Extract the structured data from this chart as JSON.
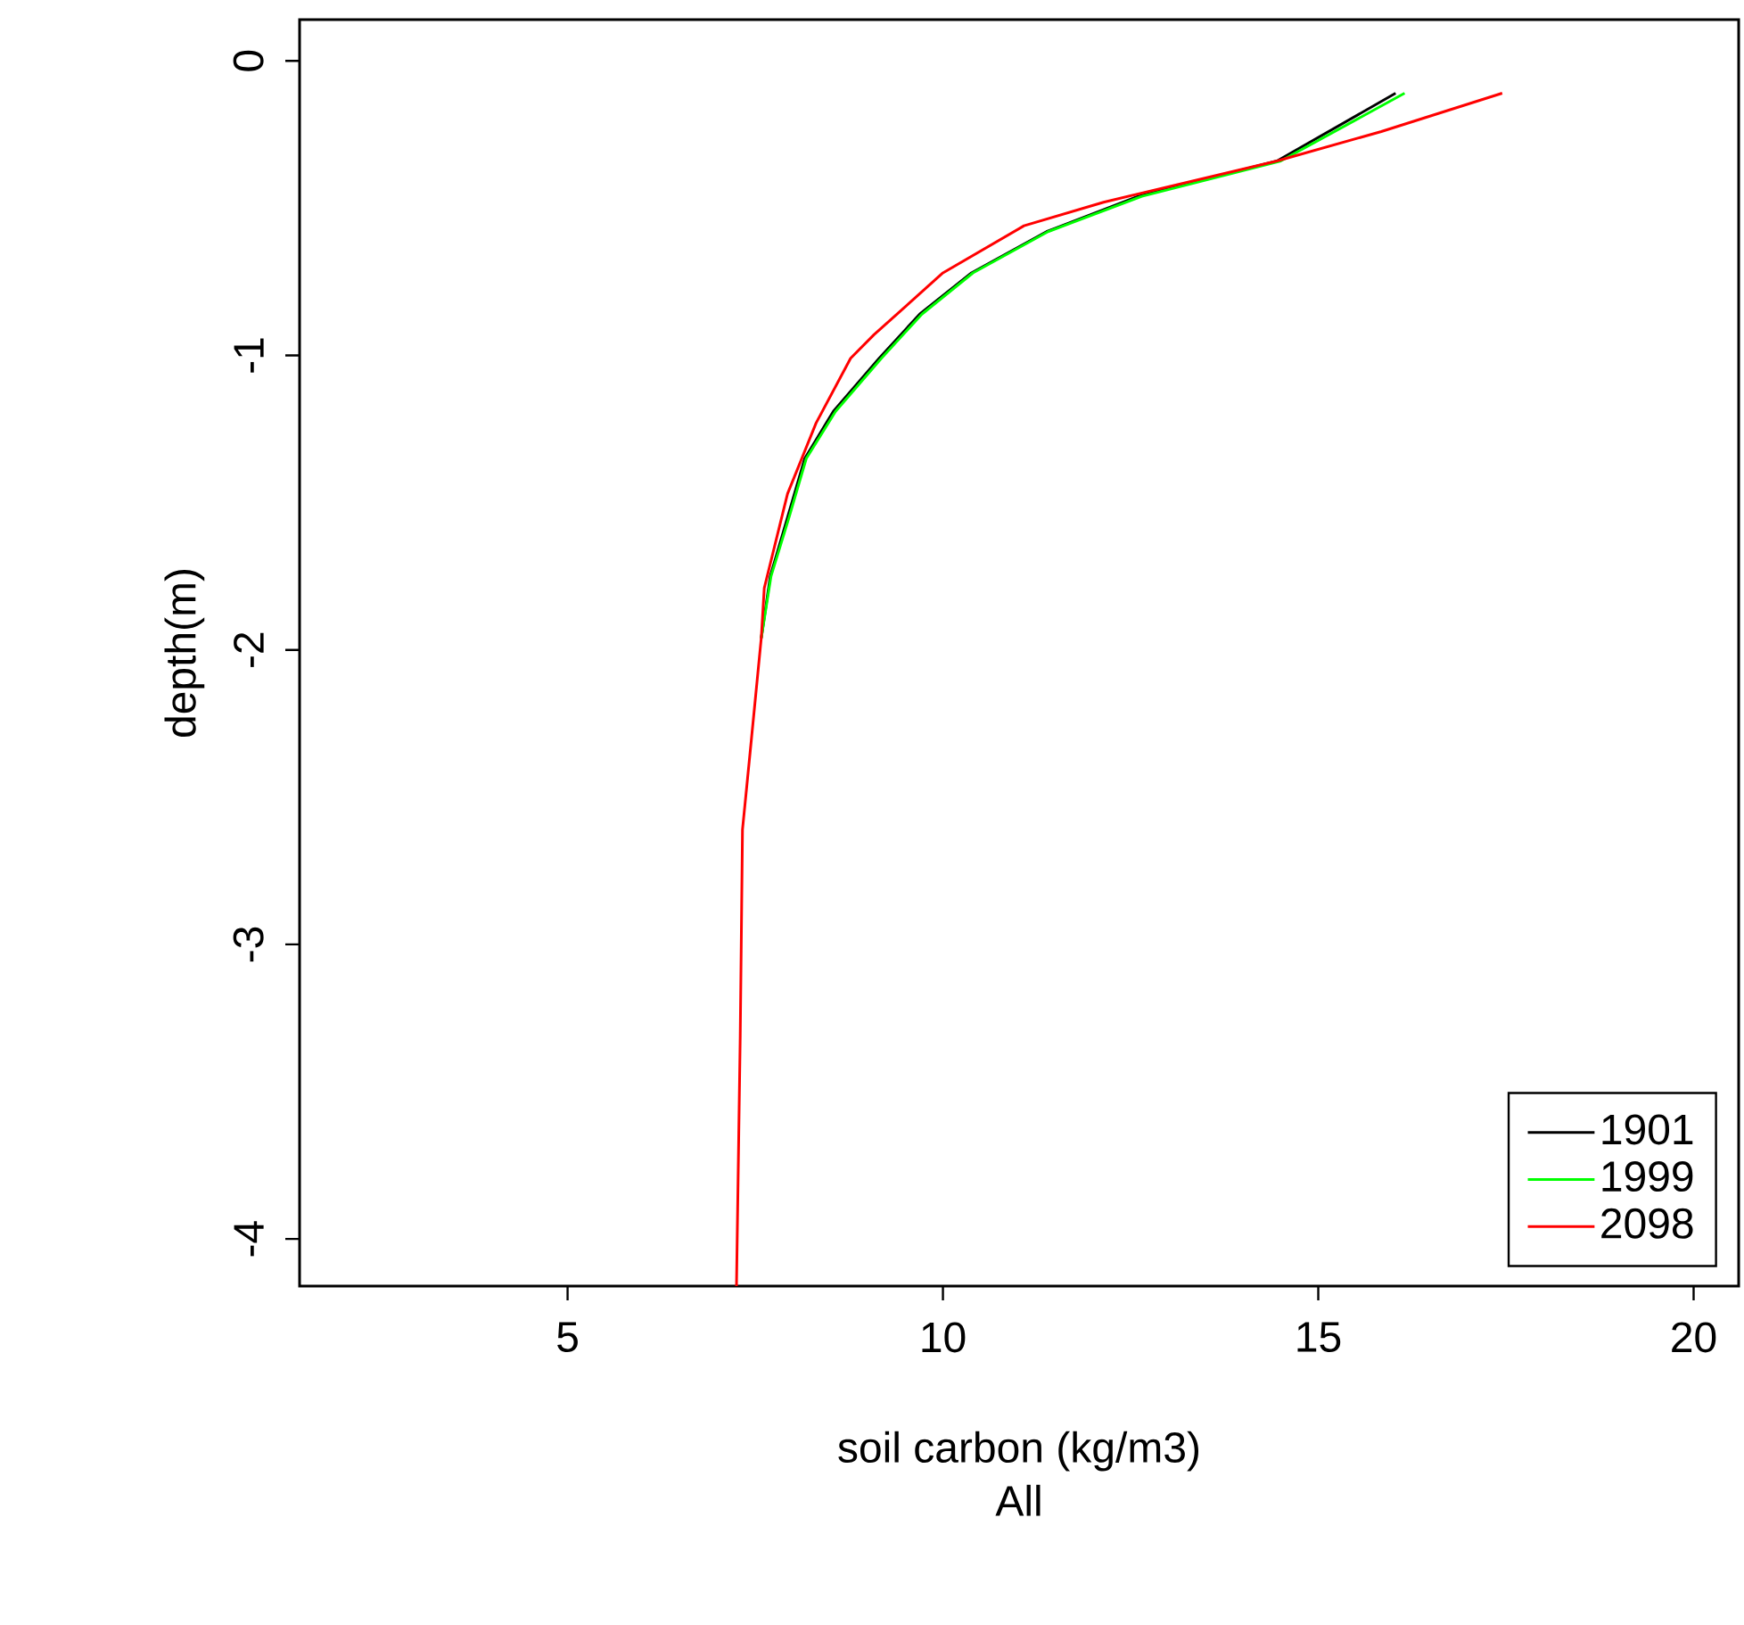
{
  "chart_data": {
    "type": "line",
    "xlabel": "soil carbon (kg/m3)",
    "subtitle": "All",
    "ylabel": "depth(m)",
    "xlim": [
      1.43,
      20.6
    ],
    "ylim": [
      -4.16,
      0.14
    ],
    "xticks": [
      5,
      10,
      15,
      20
    ],
    "yticks": [
      -4,
      -3,
      -2,
      -1,
      0
    ],
    "legend": "bottom right",
    "grid": false,
    "marker": "none",
    "line_style": "solid",
    "series": [
      {
        "name": "1901",
        "color": "#000000",
        "x": [
          16.03,
          14.45,
          12.6,
          11.38,
          10.38,
          9.69,
          9.15,
          8.54,
          8.16,
          7.93,
          7.7,
          7.58
        ],
        "values": [
          -0.11,
          -0.34,
          -0.46,
          -0.58,
          -0.72,
          -0.86,
          -1.01,
          -1.19,
          -1.35,
          -1.55,
          -1.75,
          -1.96
        ]
      },
      {
        "name": "1999",
        "color": "#00ff00",
        "x": [
          16.15,
          14.5,
          12.65,
          11.4,
          10.4,
          9.72,
          9.18,
          8.57,
          8.18,
          7.95,
          7.71,
          7.58
        ],
        "values": [
          -0.11,
          -0.34,
          -0.46,
          -0.58,
          -0.72,
          -0.86,
          -1.01,
          -1.19,
          -1.35,
          -1.55,
          -1.75,
          -1.96
        ]
      },
      {
        "name": "2098",
        "color": "#ff0000",
        "x": [
          17.45,
          15.84,
          14.45,
          12.14,
          11.08,
          10.0,
          9.08,
          8.77,
          8.31,
          7.93,
          7.62,
          7.58,
          7.45,
          7.33,
          7.3,
          7.25
        ],
        "values": [
          -0.11,
          -0.24,
          -0.34,
          -0.48,
          -0.56,
          -0.72,
          -0.93,
          -1.01,
          -1.23,
          -1.47,
          -1.79,
          -1.96,
          -2.3,
          -2.61,
          -3.31,
          -4.16
        ]
      }
    ]
  }
}
